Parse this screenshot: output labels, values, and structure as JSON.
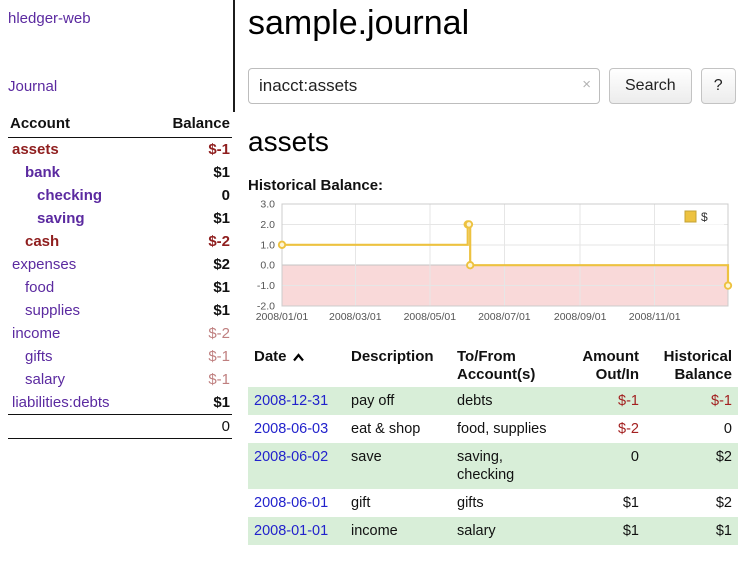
{
  "colors": {
    "link_purple": "#5b2aa0",
    "negative_red": "#8f1e1e",
    "soft_negative_red": "#bf7f7f",
    "register_negative_red": "#a32020",
    "date_link_blue": "#2222cc",
    "row_green": "#d8eed8",
    "chart_line_gold": "#edc240",
    "chart_negative_region": "#f9d9d9"
  },
  "sidebar": {
    "brand": "hledger-web",
    "nav": {
      "journal": "Journal"
    },
    "accounts_table": {
      "col_account": "Account",
      "col_balance": "Balance",
      "rows": [
        {
          "name": "assets",
          "balance": "$-1"
        },
        {
          "name": "bank",
          "balance": "$1"
        },
        {
          "name": "checking",
          "balance": "0"
        },
        {
          "name": "saving",
          "balance": "$1"
        },
        {
          "name": "cash",
          "balance": "$-2"
        },
        {
          "name": "expenses",
          "balance": "$2"
        },
        {
          "name": "food",
          "balance": "$1"
        },
        {
          "name": "supplies",
          "balance": "$1"
        },
        {
          "name": "income",
          "balance": "$-2"
        },
        {
          "name": "gifts",
          "balance": "$-1"
        },
        {
          "name": "salary",
          "balance": "$-1"
        },
        {
          "name": "liabilities:debts",
          "balance": "$1"
        }
      ],
      "total": "0"
    }
  },
  "main": {
    "title": "sample.journal",
    "search": {
      "value": "inacct:assets",
      "clear_icon": "×",
      "search_button": "Search",
      "help_button": "?"
    },
    "account_heading": "assets",
    "chart_heading": "Historical Balance:"
  },
  "chart_data": {
    "type": "line",
    "title": "Historical Balance",
    "step": true,
    "x_type": "date",
    "xrange": [
      "2008/01/01",
      "2008/12/31"
    ],
    "xticks": [
      "2008/01/01",
      "2008/03/01",
      "2008/05/01",
      "2008/07/01",
      "2008/09/01",
      "2008/11/01"
    ],
    "ylim": [
      -2,
      3
    ],
    "yticks": [
      3.0,
      2.0,
      1.0,
      0.0,
      -1.0,
      -2.0
    ],
    "grid": true,
    "legend_position": "top-right",
    "negative_region_color": "#f9d9d9",
    "series": [
      {
        "name": "$",
        "color": "#edc240",
        "points": [
          {
            "x": "2008/01/01",
            "y": 1
          },
          {
            "x": "2008/06/01",
            "y": 2
          },
          {
            "x": "2008/06/02",
            "y": 2
          },
          {
            "x": "2008/06/03",
            "y": 0
          },
          {
            "x": "2008/12/31",
            "y": -1
          }
        ]
      }
    ]
  },
  "register": {
    "headers": {
      "date": "Date",
      "description": "Description",
      "account_line1": "To/From",
      "account_line2": "Account(s)",
      "amount_line1": "Amount",
      "amount_line2": "Out/In",
      "balance_line1": "Historical",
      "balance_line2": "Balance"
    },
    "rows": [
      {
        "date": "2008-12-31",
        "description": "pay off",
        "accounts": [
          "debts"
        ],
        "amount": "$-1",
        "balance": "$-1"
      },
      {
        "date": "2008-06-03",
        "description": "eat & shop",
        "accounts": [
          "food, supplies"
        ],
        "amount": "$-2",
        "balance": "0"
      },
      {
        "date": "2008-06-02",
        "description": "save",
        "accounts": [
          "saving,",
          "checking"
        ],
        "amount": "0",
        "balance": "$2"
      },
      {
        "date": "2008-06-01",
        "description": "gift",
        "accounts": [
          "gifts"
        ],
        "amount": "$1",
        "balance": "$2"
      },
      {
        "date": "2008-01-01",
        "description": "income",
        "accounts": [
          "salary"
        ],
        "amount": "$1",
        "balance": "$1"
      }
    ]
  }
}
